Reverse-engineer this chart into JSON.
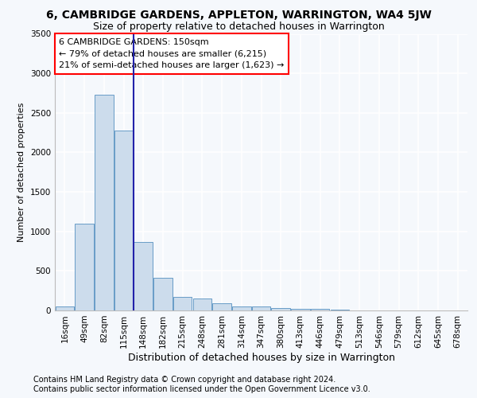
{
  "title": "6, CAMBRIDGE GARDENS, APPLETON, WARRINGTON, WA4 5JW",
  "subtitle": "Size of property relative to detached houses in Warrington",
  "xlabel": "Distribution of detached houses by size in Warrington",
  "ylabel": "Number of detached properties",
  "footer_line1": "Contains HM Land Registry data © Crown copyright and database right 2024.",
  "footer_line2": "Contains public sector information licensed under the Open Government Licence v3.0.",
  "annotation_line1": "6 CAMBRIDGE GARDENS: 150sqm",
  "annotation_line2": "← 79% of detached houses are smaller (6,215)",
  "annotation_line3": "21% of semi-detached houses are larger (1,623) →",
  "bar_color": "#ccdcec",
  "bar_edge_color": "#5590c0",
  "marker_line_color": "#2222aa",
  "categories": [
    "16sqm",
    "49sqm",
    "82sqm",
    "115sqm",
    "148sqm",
    "182sqm",
    "215sqm",
    "248sqm",
    "281sqm",
    "314sqm",
    "347sqm",
    "380sqm",
    "413sqm",
    "446sqm",
    "479sqm",
    "513sqm",
    "546sqm",
    "579sqm",
    "612sqm",
    "645sqm",
    "678sqm"
  ],
  "values": [
    50,
    1100,
    2730,
    2280,
    870,
    415,
    170,
    155,
    90,
    55,
    50,
    30,
    25,
    20,
    10,
    5,
    3,
    2,
    1,
    0,
    0
  ],
  "marker_bin_index": 4,
  "ylim": [
    0,
    3500
  ],
  "yticks": [
    0,
    500,
    1000,
    1500,
    2000,
    2500,
    3000,
    3500
  ],
  "background_color": "#f5f8fc",
  "plot_bg_color": "#f5f8fc",
  "grid_color": "#ffffff",
  "title_fontsize": 10,
  "subtitle_fontsize": 9,
  "xlabel_fontsize": 9,
  "ylabel_fontsize": 8,
  "tick_fontsize": 7.5,
  "annotation_fontsize": 8,
  "footer_fontsize": 7
}
